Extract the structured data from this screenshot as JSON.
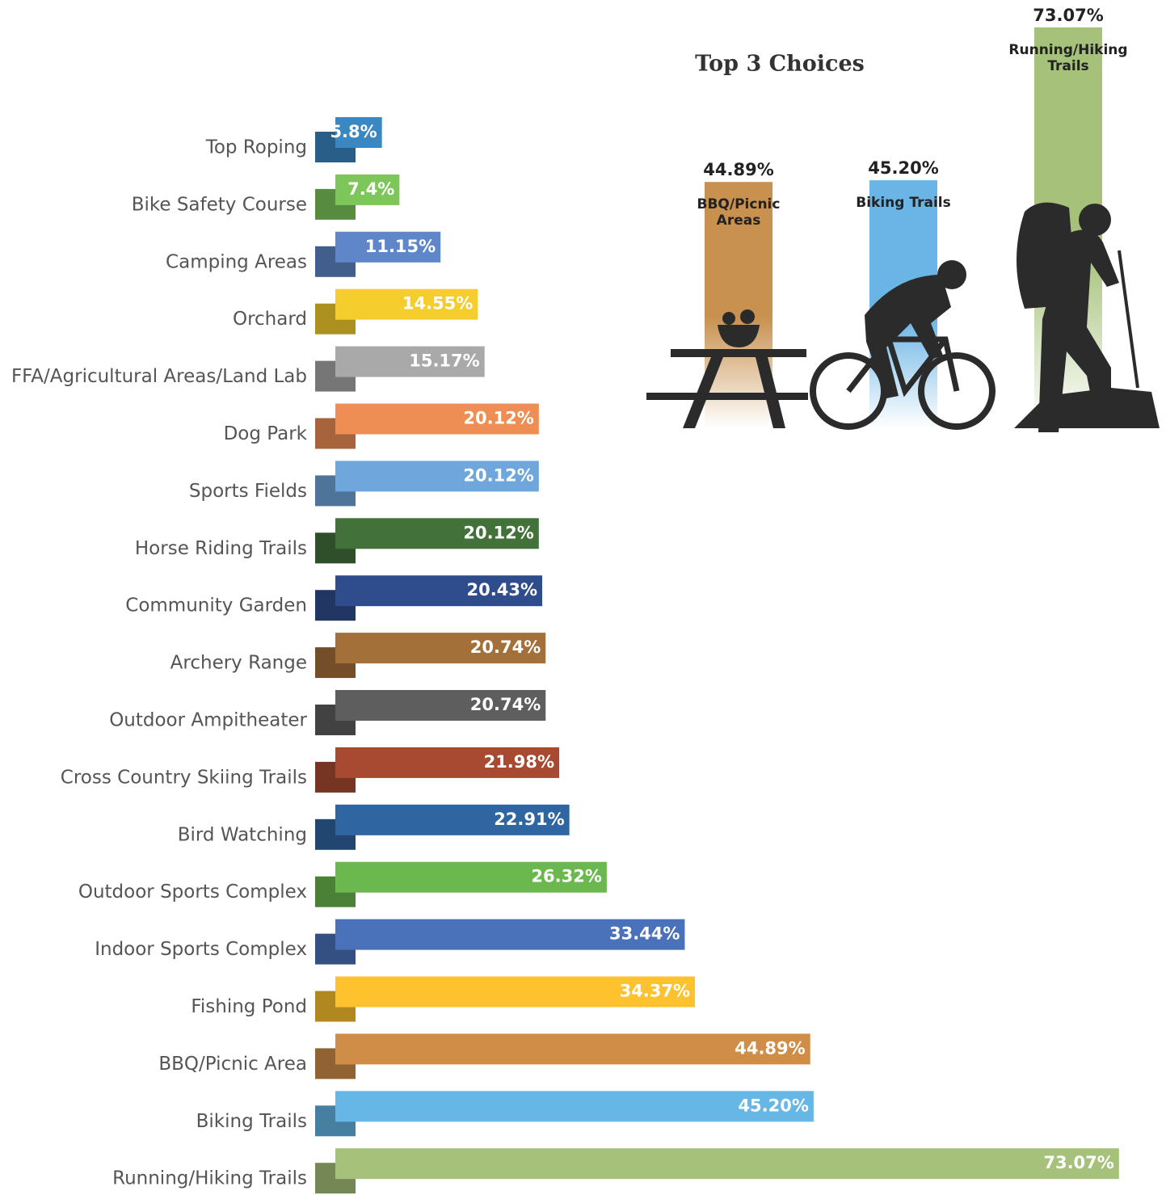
{
  "chart_data": [
    {
      "type": "hbar",
      "categories": [
        "Top Roping",
        "Bike Safety Course",
        "Camping Areas",
        "Orchard",
        "FFA/Agricultural Areas/Land Lab",
        "Dog Park",
        "Sports Fields",
        "Horse Riding Trails",
        "Community Garden",
        "Archery Range",
        "Outdoor Ampitheater",
        "Cross Country Skiing Trails",
        "Bird Watching",
        "Outdoor Sports Complex",
        "Indoor Sports Complex",
        "Fishing Pond",
        "BBQ/Picnic Area",
        "Biking Trails",
        "Running/Hiking Trails"
      ],
      "values": [
        5.8,
        7.4,
        11.15,
        14.55,
        15.17,
        20.12,
        20.12,
        20.12,
        20.43,
        20.74,
        20.74,
        21.98,
        22.91,
        26.32,
        33.44,
        34.37,
        44.89,
        45.2,
        73.07
      ],
      "value_labels": [
        "5.8%",
        "7.4%",
        "11.15%",
        "14.55%",
        "15.17%",
        "20.12%",
        "20.12%",
        "20.12%",
        "20.43%",
        "20.74%",
        "20.74%",
        "21.98%",
        "22.91%",
        "26.32%",
        "33.44%",
        "34.37%",
        "44.89%",
        "45.20%",
        "73.07%"
      ],
      "colors": [
        "#3a87c2",
        "#7cc65a",
        "#5f86c9",
        "#f5cd2d",
        "#a9a9a9",
        "#ee8e54",
        "#6fa6dc",
        "#42713a",
        "#2f4d8c",
        "#a4703a",
        "#5e5e5e",
        "#a84a32",
        "#2f65a0",
        "#6bb84e",
        "#4a72bb",
        "#fdc22e",
        "#cf8d48",
        "#66b6e6",
        "#a5c17a"
      ]
    },
    {
      "type": "vbar",
      "title": "Top 3 Choices",
      "categories": [
        "BBQ/Picnic Areas",
        "Biking Trails",
        "Running/Hiking Trails"
      ],
      "values": [
        44.89,
        45.2,
        73.07
      ],
      "value_labels": [
        "44.89%",
        "45.20%",
        "73.07%"
      ],
      "colors": [
        "#c8914f",
        "#6ab4e6",
        "#a5c17a"
      ]
    }
  ]
}
